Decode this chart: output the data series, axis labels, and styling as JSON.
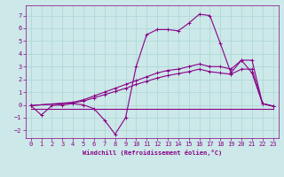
{
  "xlabel": "Windchill (Refroidissement éolien,°C)",
  "bg_color": "#cce8e8",
  "grid_color": "#aad4d4",
  "line_color": "#880088",
  "xlim": [
    -0.5,
    23.5
  ],
  "ylim": [
    -2.6,
    7.8
  ],
  "xticks": [
    0,
    1,
    2,
    3,
    4,
    5,
    6,
    7,
    8,
    9,
    10,
    11,
    12,
    13,
    14,
    15,
    16,
    17,
    18,
    19,
    20,
    21,
    22,
    23
  ],
  "yticks": [
    -2,
    -1,
    0,
    1,
    2,
    3,
    4,
    5,
    6,
    7
  ],
  "line1_x": [
    0,
    1,
    2,
    3,
    4,
    5,
    6,
    7,
    8,
    9,
    10,
    11,
    12,
    13,
    14,
    15,
    16,
    17,
    18,
    19,
    20,
    21,
    22,
    23
  ],
  "line1_y": [
    -0.05,
    -0.8,
    -0.05,
    0.0,
    0.1,
    0.0,
    -0.3,
    -1.2,
    -2.3,
    -1.0,
    3.0,
    5.5,
    5.9,
    5.9,
    5.8,
    6.4,
    7.1,
    7.0,
    4.8,
    2.5,
    3.5,
    2.5,
    0.1,
    -0.1
  ],
  "line2_x": [
    0,
    4,
    5,
    6,
    7,
    8,
    9,
    10,
    11,
    12,
    13,
    14,
    15,
    16,
    17,
    18,
    19,
    20,
    21,
    22,
    23
  ],
  "line2_y": [
    -0.05,
    0.2,
    0.4,
    0.7,
    1.0,
    1.3,
    1.6,
    1.9,
    2.2,
    2.5,
    2.7,
    2.8,
    3.0,
    3.2,
    3.0,
    3.0,
    2.8,
    3.5,
    3.5,
    0.1,
    -0.1
  ],
  "line3_x": [
    0,
    4,
    5,
    6,
    7,
    8,
    9,
    10,
    11,
    12,
    13,
    14,
    15,
    16,
    17,
    18,
    19,
    20,
    21,
    22,
    23
  ],
  "line3_y": [
    -0.05,
    0.15,
    0.3,
    0.55,
    0.8,
    1.05,
    1.3,
    1.6,
    1.85,
    2.1,
    2.3,
    2.45,
    2.6,
    2.8,
    2.6,
    2.5,
    2.4,
    2.8,
    2.8,
    0.1,
    -0.1
  ],
  "line4_x": [
    0,
    23
  ],
  "line4_y": [
    -0.3,
    -0.3
  ]
}
